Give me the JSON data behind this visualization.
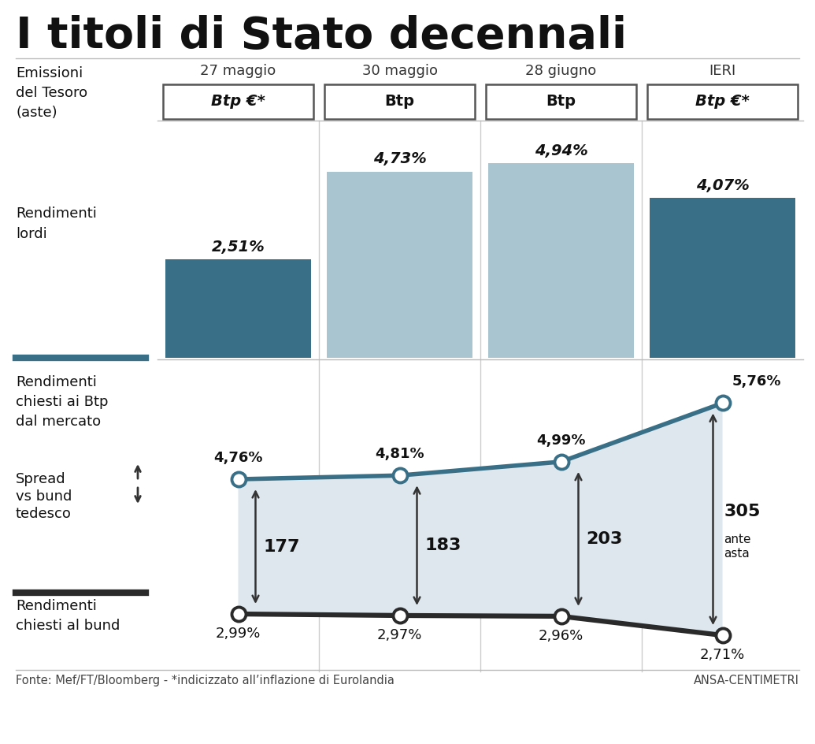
{
  "title": "I titoli di Stato decennali",
  "dates": [
    "27 maggio",
    "30 maggio",
    "28 giugno",
    "IERI"
  ],
  "btp_types": [
    "Btp €*",
    "Btp",
    "Btp",
    "Btp €*"
  ],
  "btp_italic": [
    true,
    false,
    false,
    true
  ],
  "bar_values": [
    2.51,
    4.73,
    4.94,
    4.07
  ],
  "bar_labels": [
    "2,51%",
    "4,73%",
    "4,94%",
    "4,07%"
  ],
  "bar_colors": [
    "#3a7087",
    "#a8c5d0",
    "#a8c5d0",
    "#3a7087"
  ],
  "btp_line": [
    4.76,
    4.81,
    4.99,
    5.76
  ],
  "btp_line_labels": [
    "4,76%",
    "4,81%",
    "4,99%",
    "5,76%"
  ],
  "bund_line": [
    2.99,
    2.97,
    2.96,
    2.71
  ],
  "bund_line_labels": [
    "2,99%",
    "2,97%",
    "2,96%",
    "2,71%"
  ],
  "spread_values": [
    "177",
    "183",
    "203",
    "305"
  ],
  "spread_extra": [
    "",
    "",
    "",
    "ante\nasta"
  ],
  "btp_line_color": "#3a7087",
  "bund_line_color": "#2a2a2a",
  "fill_color": "#dde7ed",
  "fonte": "Fonte: Mef/FT/Bloomberg - *indicizzato all’inflazione di Eurolandia",
  "ansa": "ANSA-CENTIMETRI",
  "bg_color": "#ffffff",
  "emissioni_label": "Emissioni\ndel Tesoro\n(aste)"
}
